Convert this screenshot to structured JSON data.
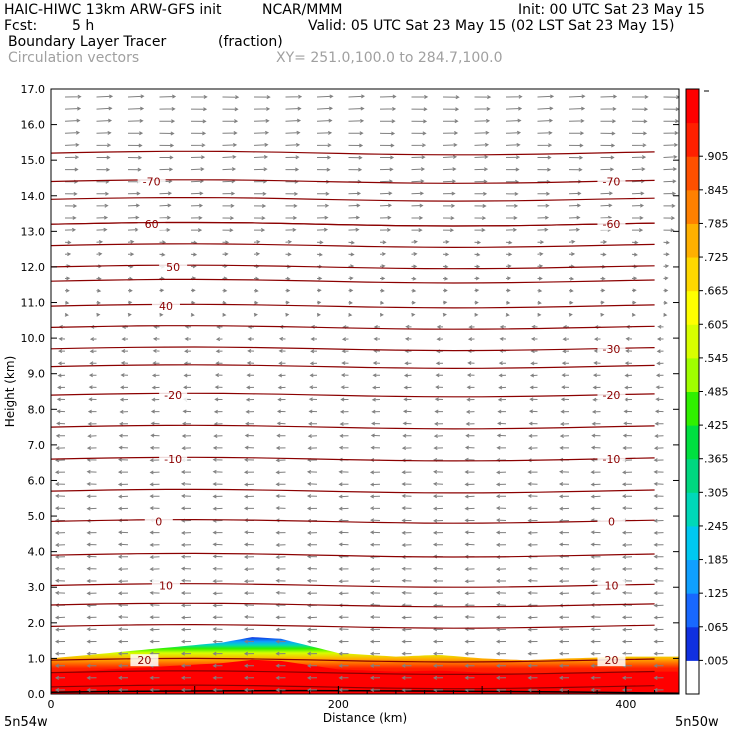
{
  "header": {
    "model": "HAIC-HIWC 13km ARW-GFS init",
    "org": "NCAR/MMM",
    "init": "Init: 00 UTC Sat 23 May 15",
    "fcst_label": "Fcst:",
    "fcst_value": "5 h",
    "valid": "Valid: 05 UTC Sat 23 May 15 (02 LST Sat 23 May 15)",
    "field": "Boundary Layer Tracer",
    "units": "(fraction)",
    "vectors": "Circulation vectors",
    "xy": "XY= 251.0,100.0 to 284.7,100.0"
  },
  "chart_data": {
    "type": "heatmap",
    "xlabel": "Distance (km)",
    "ylabel": "Height (km)",
    "xlim": [
      0,
      437
    ],
    "ylim": [
      0,
      17
    ],
    "x_ticks": [
      0,
      200,
      400
    ],
    "y_ticks": [
      "0.0",
      "1.0",
      "2.0",
      "3.0",
      "4.0",
      "5.0",
      "6.0",
      "7.0",
      "8.0",
      "9.0",
      "10.0",
      "11.0",
      "12.0",
      "13.0",
      "14.0",
      "15.0",
      "16.0",
      "17.0"
    ],
    "x_end_labels": {
      "left": "5n54w",
      "right": "5n50w"
    },
    "colorbar": {
      "labels": [
        ".005",
        ".065",
        ".125",
        ".185",
        ".245",
        ".305",
        ".365",
        ".425",
        ".485",
        ".545",
        ".605",
        ".665",
        ".725",
        ".785",
        ".845",
        ".905"
      ],
      "colors": [
        "#ffffff",
        "#1030e0",
        "#1868ff",
        "#10a0ff",
        "#00c8f0",
        "#00d8b8",
        "#00d880",
        "#00e040",
        "#30f000",
        "#a0ff00",
        "#d8ff00",
        "#ffff00",
        "#ffd800",
        "#ffb000",
        "#ff8000",
        "#ff5000",
        "#ff2000",
        "#ff0000"
      ]
    },
    "bl_tracer_top_km": {
      "x": [
        0,
        40,
        80,
        120,
        140,
        160,
        180,
        200,
        240,
        270,
        300,
        330,
        360,
        400,
        437
      ],
      "top": [
        1.0,
        1.15,
        1.3,
        1.45,
        1.6,
        1.55,
        1.35,
        1.15,
        1.05,
        1.1,
        1.0,
        0.95,
        1.0,
        1.05,
        1.05
      ]
    },
    "temperature_contours_C": [
      {
        "value": "20",
        "height_km": 0.95,
        "label_x": [
          65,
          390
        ]
      },
      {
        "value": "10",
        "height_km": 3.05,
        "label_x": [
          80,
          390
        ]
      },
      {
        "value": "0",
        "height_km": 4.85,
        "label_x": [
          75,
          390
        ]
      },
      {
        "value": "-10",
        "height_km": 6.6,
        "label_x": [
          85,
          390
        ]
      },
      {
        "value": "-20",
        "height_km": 8.4,
        "label_x": [
          85,
          390
        ]
      },
      {
        "value": "-30",
        "height_km": 9.7,
        "label_x": [
          390
        ]
      },
      {
        "value": "40",
        "height_km": 10.9,
        "label_x": [
          80
        ]
      },
      {
        "value": "50",
        "height_km": 12.0,
        "label_x": [
          85
        ]
      },
      {
        "value": "60",
        "height_km": 13.2,
        "label_x": [
          70
        ]
      },
      {
        "value": "-60",
        "height_km": 13.2,
        "label_x": [
          390
        ]
      },
      {
        "value": "-70",
        "height_km": 14.4,
        "label_x": [
          70,
          390
        ]
      }
    ],
    "other_isotherm_heights_km": [
      0.2,
      0.6,
      1.9,
      2.5,
      3.9,
      5.7,
      7.5,
      9.2,
      10.3,
      11.6,
      12.6,
      13.9,
      15.2
    ]
  }
}
